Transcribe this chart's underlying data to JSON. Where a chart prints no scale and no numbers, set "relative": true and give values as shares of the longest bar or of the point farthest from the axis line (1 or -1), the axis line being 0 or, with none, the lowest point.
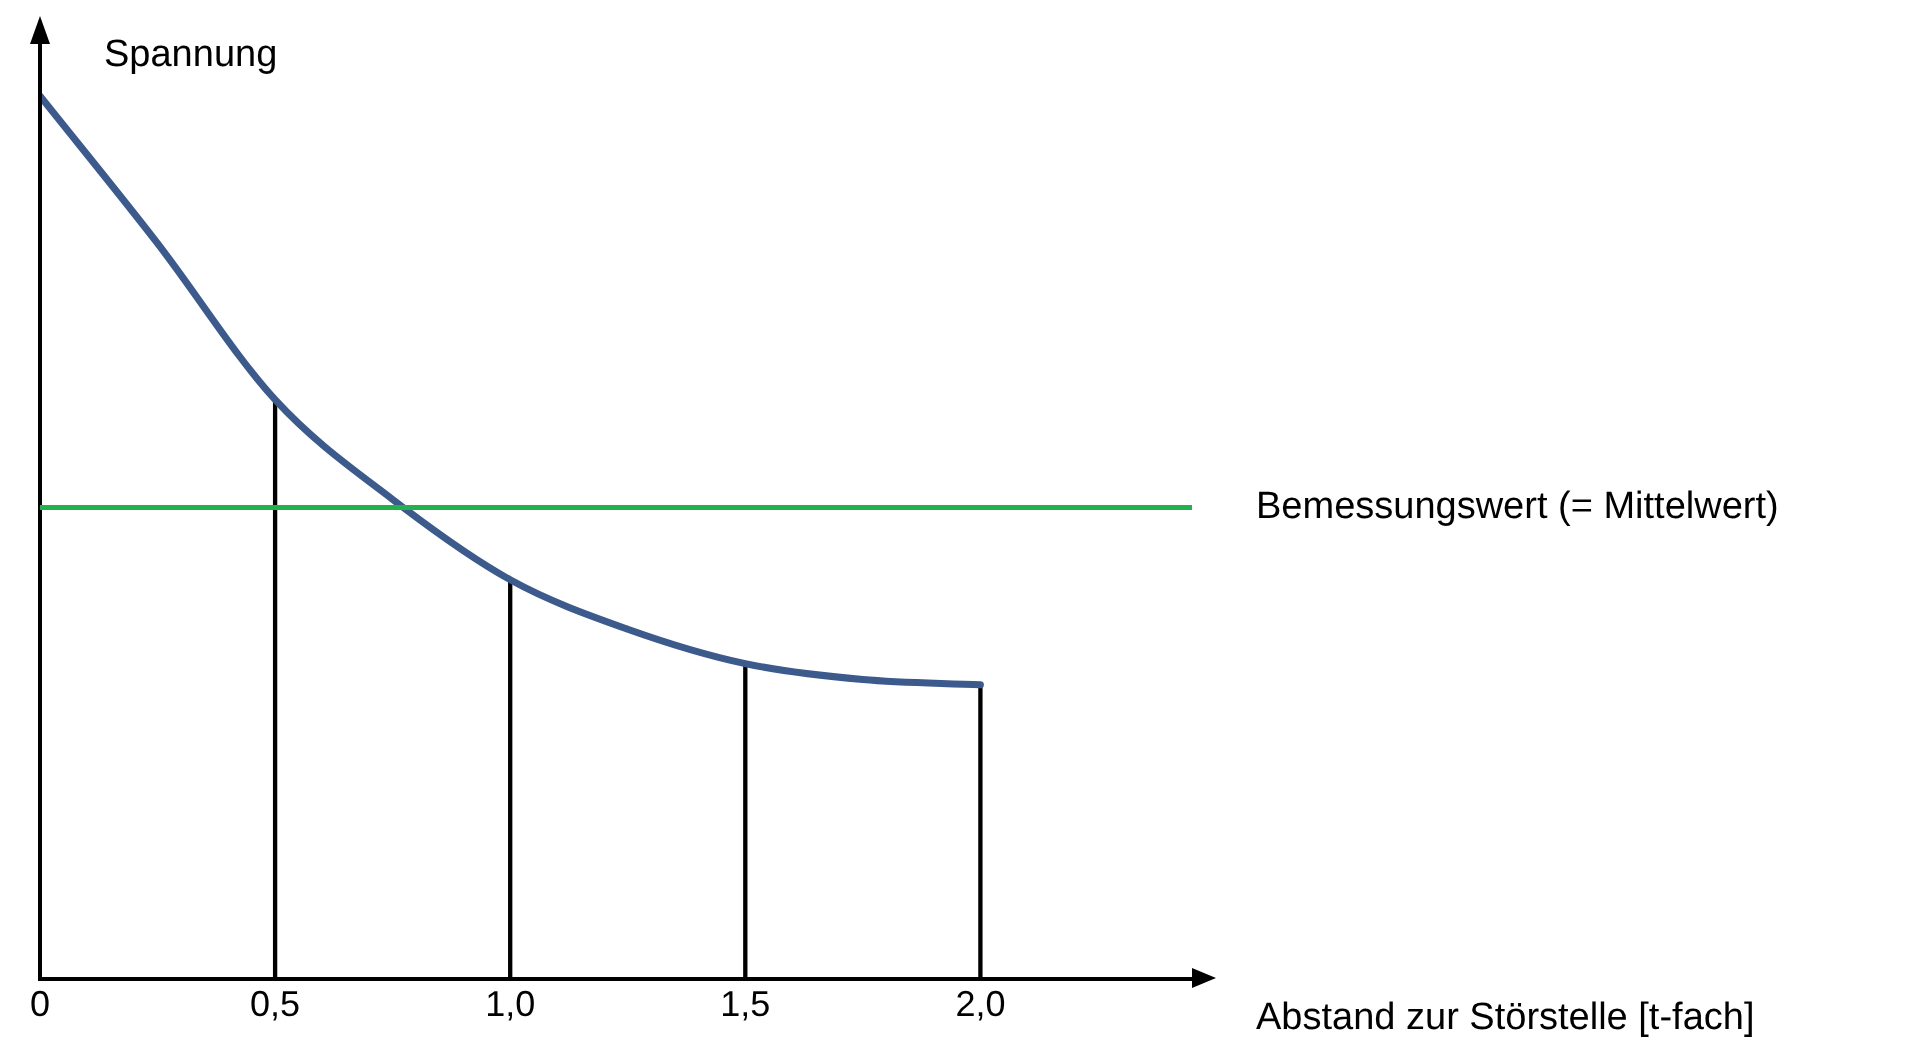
{
  "chart_data": {
    "type": "line",
    "relative": true,
    "xlabel": "Abstand zur Störstelle [t-fach]",
    "ylabel": "Spannung",
    "xlim": [
      0,
      2.45
    ],
    "xticks": [
      0,
      {
        "value": 0.5,
        "label": "0,5"
      },
      {
        "value": 1,
        "label": "1,0"
      },
      {
        "value": 1.5,
        "label": "1,5"
      },
      {
        "value": 2,
        "label": "2,0"
      }
    ],
    "tick_labels": "x",
    "grid": false,
    "legend": false,
    "marker": "none",
    "line_style": "solid",
    "series": [
      {
        "color": "#3d5a8c",
        "x": [
          0,
          0.25,
          0.5,
          0.75,
          1,
          1.25,
          1.5,
          1.75,
          2
        ],
        "values": [
          1,
          0.833,
          0.656,
          0.543,
          0.452,
          0.396,
          0.357,
          0.339,
          0.333
        ]
      },
      {
        "type": "bar",
        "color": "#000000",
        "x": [
          0.5,
          1,
          1.5,
          2
        ],
        "values": [
          0.656,
          0.452,
          0.357,
          0.333
        ]
      }
    ],
    "ref_lines": [
      {
        "axis": "y",
        "value": 0.534,
        "label": "Bemessungswert (= Mittelwert)",
        "color": "#22b14c"
      }
    ]
  }
}
